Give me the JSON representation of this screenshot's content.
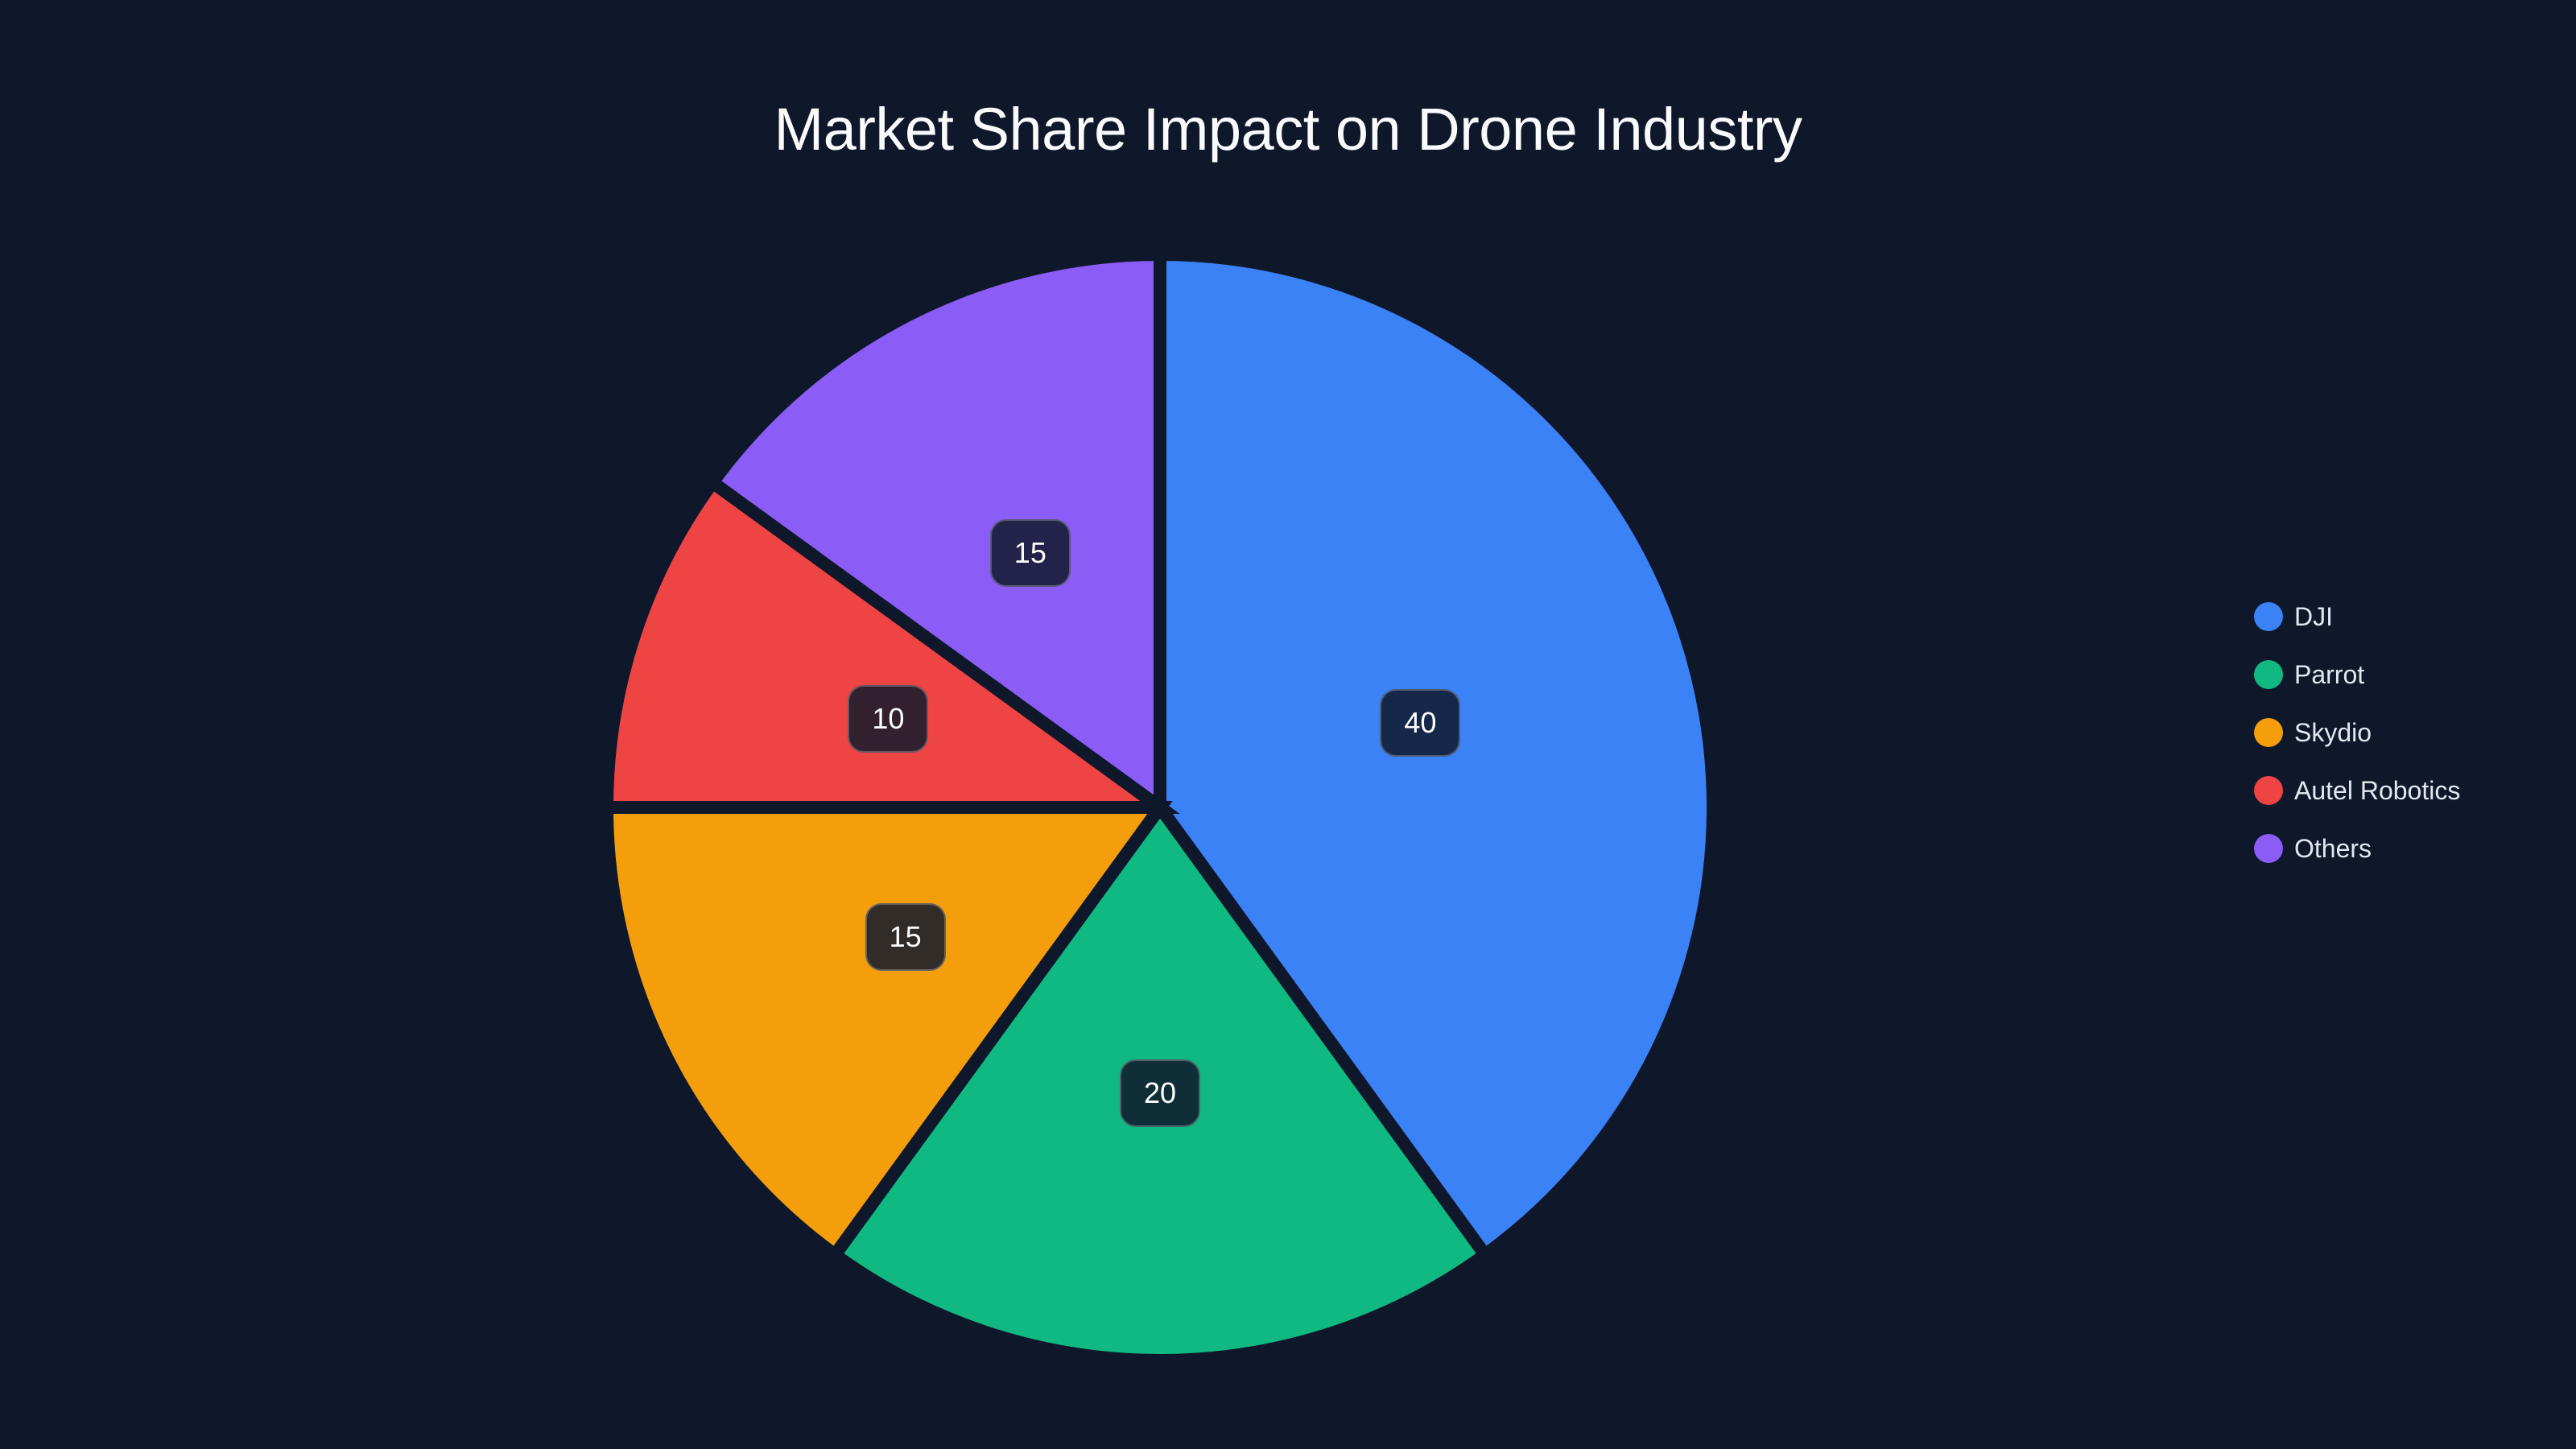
{
  "chart_data": {
    "type": "pie",
    "title": "Market Share Impact on Drone Industry",
    "categories": [
      "DJI",
      "Parrot",
      "Skydio",
      "Autel Robotics",
      "Others"
    ],
    "values": [
      40,
      20,
      15,
      10,
      15
    ],
    "colors": [
      "#3b82f6",
      "#10b981",
      "#f59e0b",
      "#ef4444",
      "#8b5cf6"
    ],
    "label_bg": [
      "#15284a",
      "#0f2e38",
      "#312c28",
      "#33202f",
      "#22224a"
    ],
    "legend_position": "right",
    "start_angle_deg": 0,
    "direction": "clockwise"
  },
  "legend": {
    "items": [
      {
        "label": "DJI",
        "color": "#3b82f6"
      },
      {
        "label": "Parrot",
        "color": "#10b981"
      },
      {
        "label": "Skydio",
        "color": "#f59e0b"
      },
      {
        "label": "Autel Robotics",
        "color": "#ef4444"
      },
      {
        "label": "Others",
        "color": "#8b5cf6"
      }
    ]
  }
}
